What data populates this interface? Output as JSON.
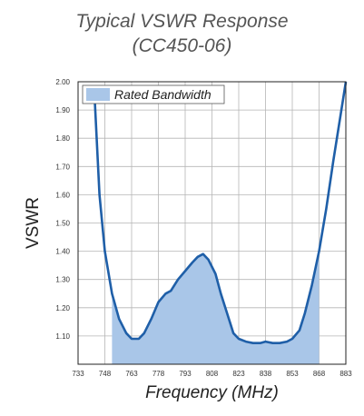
{
  "title_line1": "Typical VSWR Response",
  "title_line2": "(CC450-06)",
  "colors": {
    "line": "#1f5fa8",
    "fill": "#a9c6e8",
    "grid": "#b5b5b5",
    "frame": "#222222"
  },
  "chart_data": {
    "type": "line",
    "xlabel": "Frequency (MHz)",
    "ylabel": "VSWR",
    "xlim": [
      733,
      883
    ],
    "ylim": [
      1.0,
      2.0
    ],
    "x_ticks": [
      "733",
      "748",
      "763",
      "778",
      "793",
      "808",
      "823",
      "838",
      "853",
      "868",
      "883"
    ],
    "y_ticks": [
      "2.00",
      "1.90",
      "1.80",
      "1.70",
      "1.60",
      "1.50",
      "1.40",
      "1.30",
      "1.20",
      "1.10"
    ],
    "grid": true,
    "legend": {
      "position": "top-left",
      "label": "Rated Bandwidth"
    },
    "rated_band": [
      752,
      868
    ],
    "series": [
      {
        "values": [
          [
            742,
            1.98
          ],
          [
            745,
            1.6
          ],
          [
            748,
            1.4
          ],
          [
            752,
            1.25
          ],
          [
            756,
            1.16
          ],
          [
            760,
            1.11
          ],
          [
            763,
            1.09
          ],
          [
            767,
            1.09
          ],
          [
            770,
            1.11
          ],
          [
            774,
            1.16
          ],
          [
            778,
            1.22
          ],
          [
            782,
            1.25
          ],
          [
            785,
            1.26
          ],
          [
            789,
            1.3
          ],
          [
            793,
            1.33
          ],
          [
            797,
            1.36
          ],
          [
            800,
            1.38
          ],
          [
            803,
            1.39
          ],
          [
            806,
            1.37
          ],
          [
            810,
            1.32
          ],
          [
            813,
            1.25
          ],
          [
            817,
            1.17
          ],
          [
            820,
            1.11
          ],
          [
            823,
            1.09
          ],
          [
            827,
            1.08
          ],
          [
            831,
            1.075
          ],
          [
            835,
            1.075
          ],
          [
            838,
            1.08
          ],
          [
            842,
            1.075
          ],
          [
            846,
            1.075
          ],
          [
            850,
            1.08
          ],
          [
            853,
            1.09
          ],
          [
            857,
            1.12
          ],
          [
            860,
            1.18
          ],
          [
            864,
            1.28
          ],
          [
            868,
            1.4
          ],
          [
            872,
            1.55
          ],
          [
            876,
            1.72
          ],
          [
            880,
            1.88
          ],
          [
            883,
            2.0
          ]
        ]
      }
    ]
  }
}
